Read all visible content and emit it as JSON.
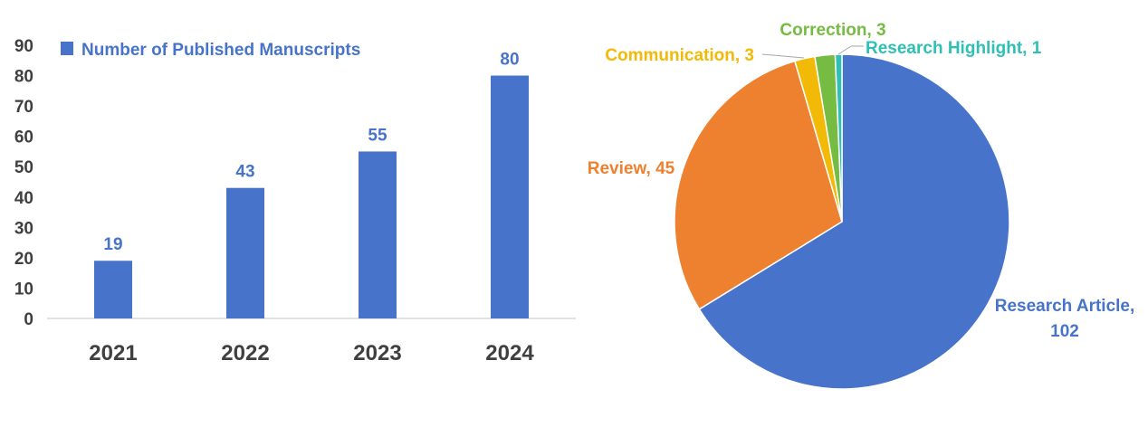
{
  "chart_data": [
    {
      "type": "bar",
      "categories": [
        "2021",
        "2022",
        "2023",
        "2024"
      ],
      "values": [
        19,
        43,
        55,
        80
      ],
      "legend": [
        "Number of Published Manuscripts"
      ],
      "legend_placement": "top-left",
      "ylim": [
        0,
        90
      ],
      "yticks": [
        0,
        10,
        20,
        30,
        40,
        50,
        60,
        70,
        80,
        90
      ],
      "grid": false,
      "data_labels": true,
      "colors": {
        "bar": "#4774CA",
        "label": "#4774CA",
        "tick": "#404040",
        "axis": "#D9D9D9"
      }
    },
    {
      "type": "pie",
      "start": "top",
      "slices": [
        {
          "label": "Research Article",
          "value": 102,
          "color": "#4774CA"
        },
        {
          "label": "Review",
          "value": 45,
          "color": "#ED8130"
        },
        {
          "label": "Communication",
          "value": 3,
          "color": "#F2BA07"
        },
        {
          "label": "Correction",
          "value": 3,
          "color": "#76BC43"
        },
        {
          "label": "Research Highlight",
          "value": 1,
          "color": "#2EC0B4"
        }
      ],
      "data_labels": [
        "Research Article,",
        "102",
        "Review, 45",
        "Communication, 3",
        "Correction, 3",
        "Research Highlight, 1"
      ]
    }
  ]
}
